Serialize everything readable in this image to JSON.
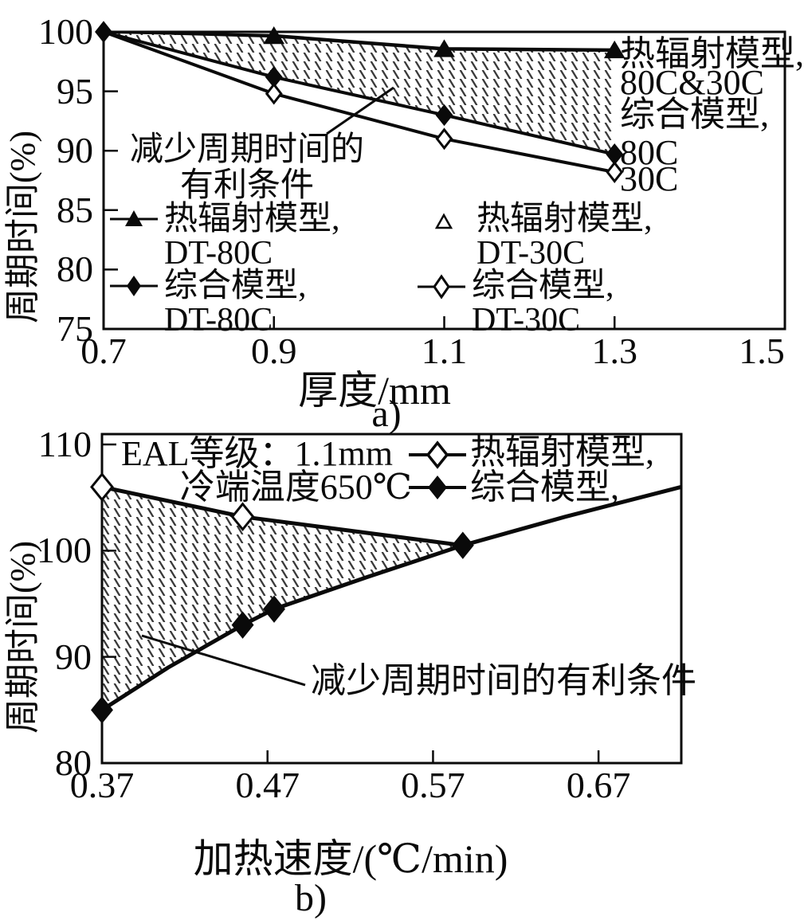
{
  "page": {
    "background": "#ffffff",
    "ink": "#0a0a0a",
    "hatch_color": "#3a3a3a"
  },
  "chart_data": [
    {
      "type": "line",
      "panel": "a)",
      "xlabel": "厚度/mm",
      "ylabel": "周期时间(%)",
      "xlim": [
        0.7,
        1.5
      ],
      "ylim": [
        75,
        100
      ],
      "x_ticks": [
        0.7,
        0.9,
        1.1,
        1.3,
        1.5
      ],
      "y_ticks": [
        100,
        95,
        90,
        85,
        80,
        75
      ],
      "grid": false,
      "legend_position": "inside bottom-left, two columns",
      "annotation": {
        "line1": "减少周期时间的",
        "line2": "有利条件"
      },
      "right_labels": [
        "热辐射模型,",
        "80C&30C",
        "综合模型,",
        "80C",
        "30C"
      ],
      "hatched_region": "between 热辐射模型 line and 综合模型 DT-80C line (favorable conditions for reducing cycle time)",
      "series": [
        {
          "name": "热辐射模型, DT-80C",
          "legend_line1": "热辐射模型,",
          "legend_line2": "DT-80C",
          "marker": "filled-triangle",
          "x": [
            0.7,
            0.9,
            1.1,
            1.3
          ],
          "values": [
            100,
            99.7,
            98.6,
            98.5
          ],
          "marker_at_x": [
            0.9,
            1.1,
            1.3
          ]
        },
        {
          "name": "热辐射模型, DT-30C",
          "legend_line1": "热辐射模型,",
          "legend_line2": "DT-30C",
          "marker": "open-triangle",
          "x": [
            0.7,
            0.9,
            1.1,
            1.3
          ],
          "values": [
            100,
            99.6,
            98.5,
            98.4
          ],
          "marker_at_x": [],
          "note": "coincides with DT-80C radiation line (labelled 80C&30C)"
        },
        {
          "name": "综合模型, DT-80C",
          "legend_line1": "综合模型,",
          "legend_line2": "DT-80C",
          "marker": "filled-diamond",
          "x": [
            0.7,
            0.9,
            1.1,
            1.3
          ],
          "values": [
            100,
            96.2,
            93.0,
            89.7
          ],
          "marker_at_x": [
            0.7,
            0.9,
            1.1,
            1.3
          ]
        },
        {
          "name": "综合模型, DT-30C",
          "legend_line1": "综合模型,",
          "legend_line2": "DT-30C",
          "marker": "open-diamond",
          "x": [
            0.7,
            0.9,
            1.1,
            1.3
          ],
          "values": [
            100,
            94.8,
            91.0,
            88.2
          ],
          "marker_at_x": [
            0.9,
            1.1,
            1.3
          ]
        }
      ]
    },
    {
      "type": "line",
      "panel": "b)",
      "xlabel": "加热速度/(℃/min)",
      "ylabel": "周期时间(%)",
      "xlim": [
        0.37,
        0.72
      ],
      "ylim": [
        80,
        110
      ],
      "x_ticks": [
        0.37,
        0.47,
        0.57,
        0.67
      ],
      "y_ticks": [
        110,
        100,
        90,
        80
      ],
      "grid": false,
      "header": {
        "line1": "EAL等级：1.1mm",
        "line2": "冷端温度650℃"
      },
      "annotation": "减少周期时间的有利条件",
      "hatched_region": "between 热辐射模型 line and 综合模型 curve from x=0.37 to their intersection (~0.59, 100.5)",
      "series": [
        {
          "name": "热辐射模型,",
          "legend_label": "热辐射模型,",
          "marker": "open-diamond",
          "x": [
            0.37,
            0.455,
            0.588
          ],
          "values": [
            106,
            103.2,
            100.5
          ],
          "marker_at_x": [
            0.37,
            0.455
          ]
        },
        {
          "name": "综合模型,",
          "legend_label": "综合模型,",
          "marker": "filled-diamond",
          "x": [
            0.37,
            0.41,
            0.455,
            0.474,
            0.53,
            0.588,
            0.65,
            0.72
          ],
          "values": [
            85,
            89,
            93,
            94.5,
            97.5,
            100.5,
            103.2,
            106
          ],
          "marker_at_x": [
            0.37,
            0.455,
            0.474,
            0.588
          ]
        }
      ]
    }
  ]
}
